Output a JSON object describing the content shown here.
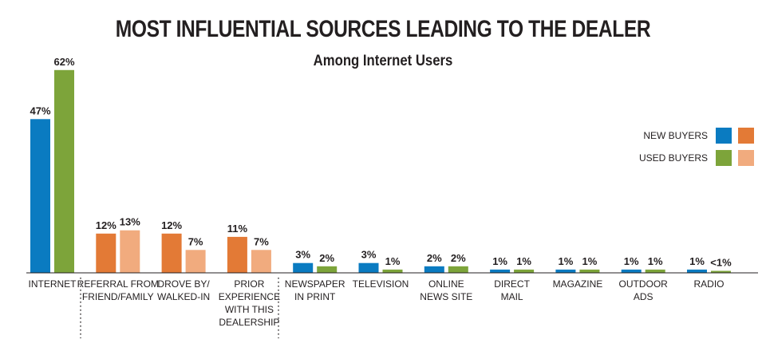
{
  "chart_data": {
    "type": "bar",
    "title": "MOST INFLUENTIAL SOURCES LEADING TO THE DEALER",
    "subtitle": "Among Internet Users",
    "categories": [
      [
        "INTERNET"
      ],
      [
        "REFERRAL FROM",
        "FRIEND/FAMILY"
      ],
      [
        "DROVE BY/",
        "WALKED-IN"
      ],
      [
        "PRIOR",
        "EXPERIENCE",
        "WITH THIS",
        "DEALERSHIP"
      ],
      [
        "NEWSPAPER",
        "IN PRINT"
      ],
      [
        "TELEVISION"
      ],
      [
        "ONLINE",
        "NEWS SITE"
      ],
      [
        "DIRECT",
        "MAIL"
      ],
      [
        "MAGAZINE"
      ],
      [
        "OUTDOOR",
        "ADS"
      ],
      [
        "RADIO"
      ]
    ],
    "series": [
      {
        "name": "NEW BUYERS",
        "values": [
          47,
          12,
          12,
          11,
          3,
          3,
          2,
          1,
          1,
          1,
          1
        ],
        "labels": [
          "47%",
          "12%",
          "12%",
          "11%",
          "3%",
          "3%",
          "2%",
          "1%",
          "1%",
          "1%",
          "1%"
        ]
      },
      {
        "name": "USED BUYERS",
        "values": [
          62,
          13,
          7,
          7,
          2,
          1,
          2,
          1,
          1,
          1,
          0.5
        ],
        "labels": [
          "62%",
          "13%",
          "7%",
          "7%",
          "2%",
          "1%",
          "2%",
          "1%",
          "1%",
          "1%",
          "<1%"
        ]
      }
    ],
    "colors": {
      "new_default": "#0a7bc1",
      "used_default": "#7da43a",
      "new_highlight": "#e37a36",
      "used_highlight": "#f1ab7e",
      "axis": "#231f20"
    },
    "highlighted_categories": [
      1,
      2,
      3
    ],
    "ylim": [
      0,
      64
    ],
    "legend": {
      "position": "right",
      "rows": [
        "NEW BUYERS",
        "USED BUYERS"
      ]
    },
    "grid": false
  }
}
